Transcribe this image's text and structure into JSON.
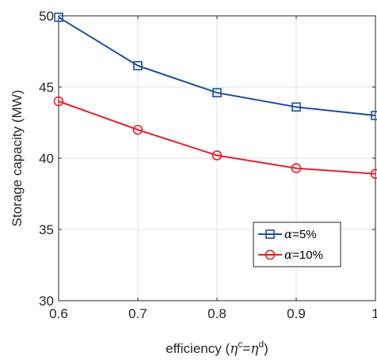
{
  "chart_data": {
    "type": "line",
    "title": "",
    "xlabel": "efficiency (η^c=η^d)",
    "xlabel_parts": {
      "prefix": "efficiency (",
      "eta1": "η",
      "sup1": "c",
      "equals": "=",
      "eta2": "η",
      "sup2": "d",
      "suffix": ")"
    },
    "ylabel": "Storage capacity (MW)",
    "x": [
      0.6,
      0.7,
      0.8,
      0.9,
      1.0
    ],
    "xlim": [
      0.6,
      1.0
    ],
    "ylim": [
      30,
      50
    ],
    "xticks": [
      "0.6",
      "0.7",
      "0.8",
      "0.9",
      "1"
    ],
    "yticks": [
      "30",
      "35",
      "40",
      "45",
      "50"
    ],
    "grid": true,
    "legend_position": "lower-right",
    "series": [
      {
        "name": "α=5%",
        "symbol": "α",
        "rest": "=5%",
        "color": "#1f4e9c",
        "marker": "square",
        "values": [
          49.9,
          46.5,
          44.6,
          43.6,
          43.0
        ]
      },
      {
        "name": "α=10%",
        "symbol": "α",
        "rest": "=10%",
        "color": "#e8202a",
        "marker": "circle",
        "values": [
          44.0,
          42.0,
          40.2,
          39.3,
          38.9
        ]
      }
    ]
  }
}
